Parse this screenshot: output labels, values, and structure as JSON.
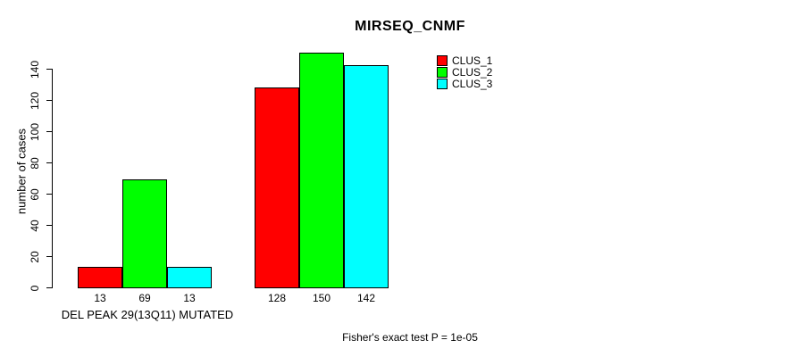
{
  "chart_data": {
    "type": "bar",
    "title": "MIRSEQ_CNMF",
    "ylabel": "number of cases",
    "ylim": [
      0,
      150
    ],
    "yticks": [
      0,
      20,
      40,
      60,
      80,
      100,
      120,
      140
    ],
    "grid": false,
    "legend_position": "top-right",
    "series": [
      {
        "name": "CLUS_1",
        "color": "#ff0000"
      },
      {
        "name": "CLUS_2",
        "color": "#00ff00"
      },
      {
        "name": "CLUS_3",
        "color": "#00ffff"
      }
    ],
    "groups": [
      {
        "label": "DEL PEAK 29(13Q11) MUTATED",
        "values": [
          13,
          69,
          13
        ]
      },
      {
        "label": "",
        "values": [
          128,
          150,
          142
        ]
      }
    ],
    "subtitle": "Fisher's exact test P = 1e-05"
  }
}
